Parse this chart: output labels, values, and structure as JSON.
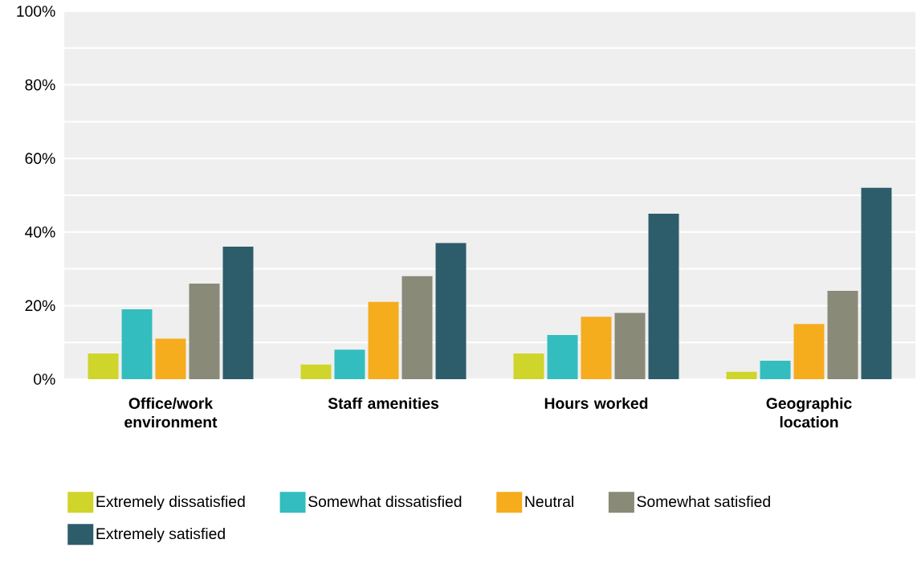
{
  "chart_data": {
    "type": "bar",
    "categories": [
      "Office/work environment",
      "Staff amenities",
      "Hours worked",
      "Geographic location"
    ],
    "series": [
      {
        "name": "Extremely dissatisfied",
        "color": "#cfd52a",
        "values": [
          7,
          4,
          7,
          2
        ]
      },
      {
        "name": "Somewhat dissatisfied",
        "color": "#33bdbf",
        "values": [
          19,
          8,
          12,
          5
        ]
      },
      {
        "name": "Neutral",
        "color": "#f5ad1e",
        "values": [
          11,
          21,
          17,
          15
        ]
      },
      {
        "name": "Somewhat satisfied",
        "color": "#8a8a78",
        "values": [
          26,
          28,
          18,
          24
        ]
      },
      {
        "name": "Extremely satisfied",
        "color": "#2d5d6b",
        "values": [
          36,
          37,
          45,
          52
        ]
      }
    ],
    "ylim": [
      0,
      100
    ],
    "yticks": [
      {
        "value": 0,
        "label": "0%"
      },
      {
        "value": 10,
        "label": null
      },
      {
        "value": 20,
        "label": "20%"
      },
      {
        "value": 30,
        "label": null
      },
      {
        "value": 40,
        "label": "40%"
      },
      {
        "value": 50,
        "label": null
      },
      {
        "value": 60,
        "label": "60%"
      },
      {
        "value": 70,
        "label": null
      },
      {
        "value": 80,
        "label": "80%"
      },
      {
        "value": 90,
        "label": null
      },
      {
        "value": 100,
        "label": "100%"
      }
    ],
    "grid": "y",
    "legend": "bottom"
  }
}
